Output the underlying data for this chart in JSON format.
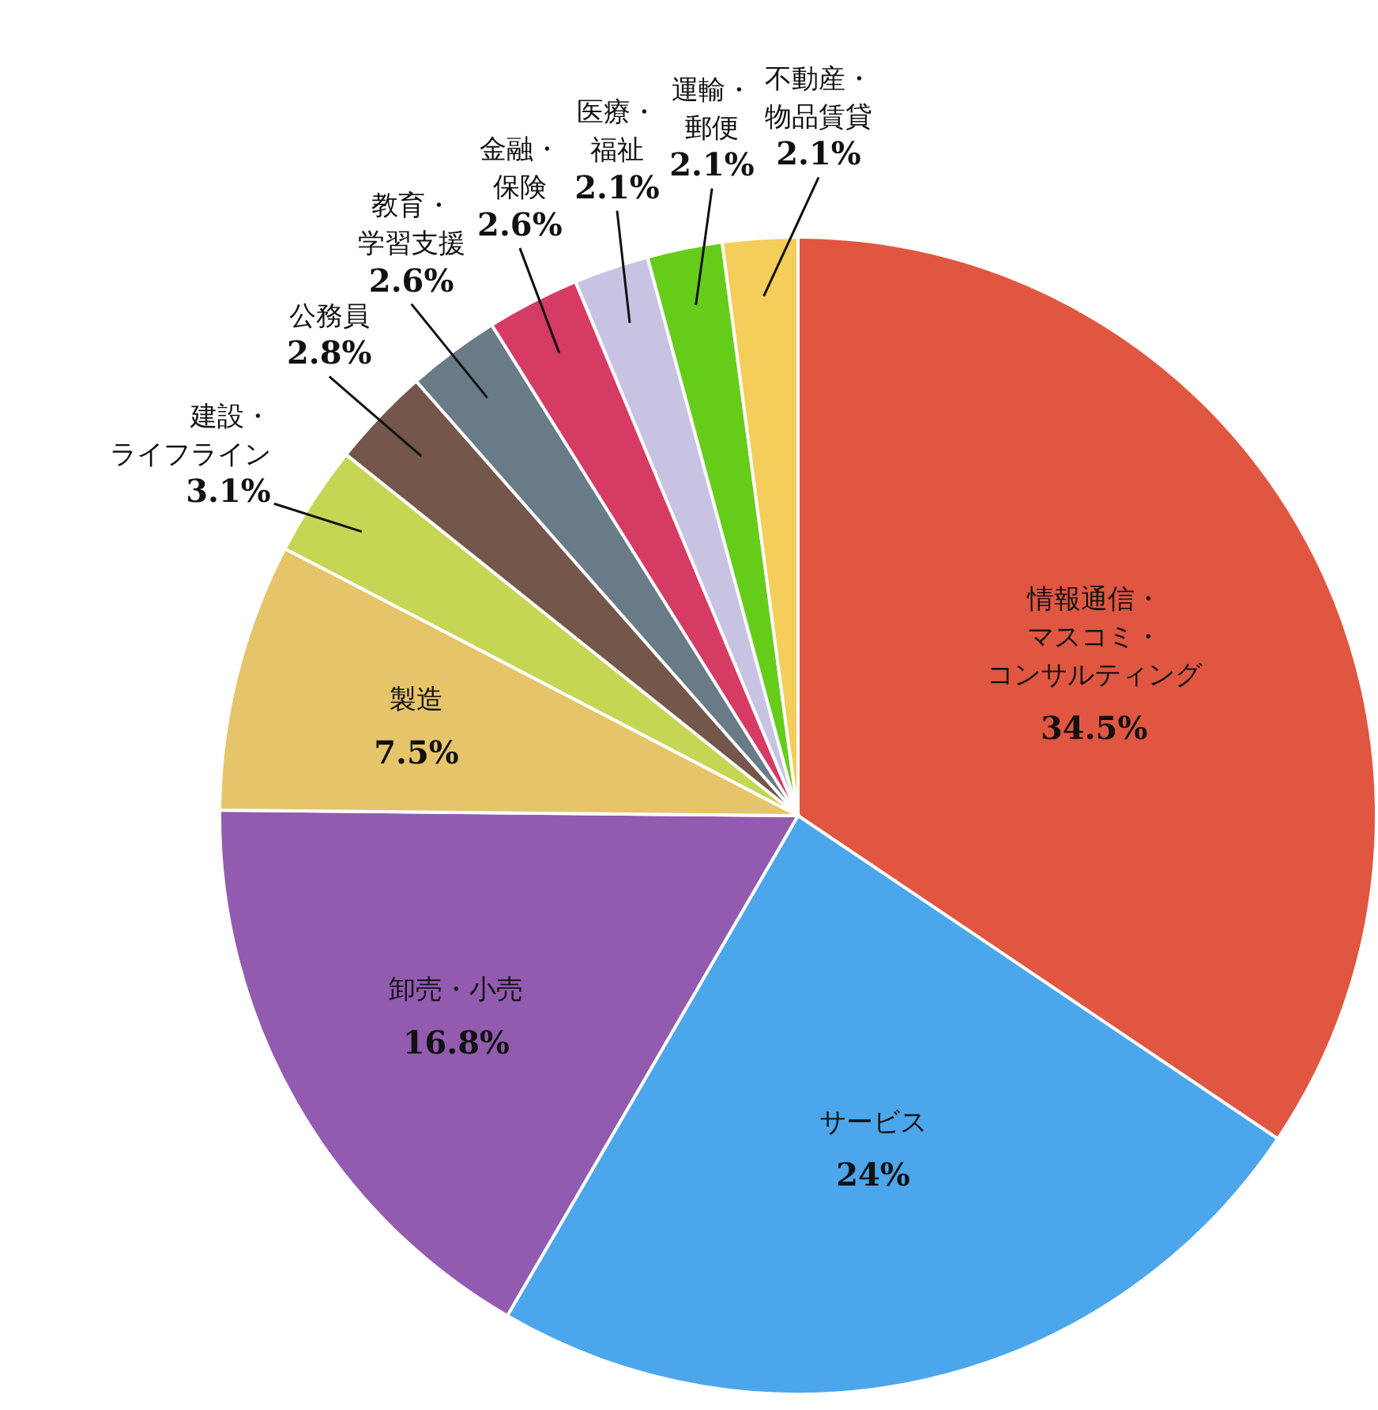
{
  "chart_data": {
    "type": "pie",
    "categories": [
      "情報通信・マスコミ・コンサルティング",
      "サービス",
      "卸売・小売",
      "製造",
      "建設・ライフライン",
      "公務員",
      "教育・学習支援",
      "金融・保険",
      "医療・福祉",
      "運輸・郵便",
      "不動産・物品賃貸"
    ],
    "values": [
      34.5,
      24,
      16.8,
      7.5,
      3.1,
      2.8,
      2.6,
      2.6,
      2.1,
      2.1,
      2.1
    ],
    "value_labels": [
      "34.5%",
      "24%",
      "16.8%",
      "7.5%",
      "3.1%",
      "2.8%",
      "2.6%",
      "2.6%",
      "2.1%",
      "2.1%",
      "2.1%"
    ],
    "colors": [
      "#e15641",
      "#4ba6ec",
      "#925bb0",
      "#e6c46a",
      "#c5d655",
      "#74574a",
      "#687b87",
      "#d63b63",
      "#c9c3e3",
      "#66cc1a",
      "#f4cd5a"
    ]
  }
}
